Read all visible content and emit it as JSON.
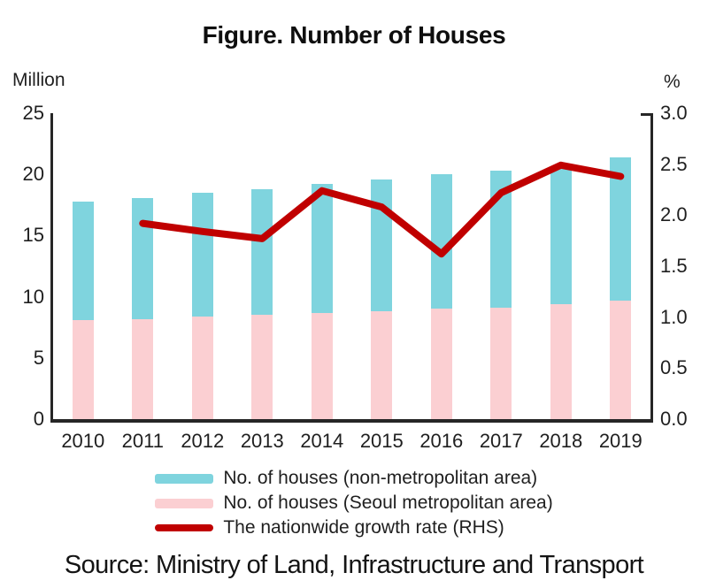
{
  "title": "Figure. Number of Houses",
  "source": "Source: Ministry of Land, Infrastructure and Transport",
  "left_axis": {
    "unit": "Million",
    "tick_labels": [
      "25",
      "20",
      "15",
      "10",
      "5",
      "0"
    ],
    "min": 0,
    "max": 25
  },
  "right_axis": {
    "unit": "%",
    "tick_labels": [
      "3.0",
      "2.5",
      "2.0",
      "1.5",
      "1.0",
      "0.5",
      "0.0"
    ],
    "min": 0,
    "max": 3
  },
  "colors": {
    "non_metro_bar": "#7FD4DE",
    "seoul_bar": "#FBCFD2",
    "growth_line": "#C00000",
    "axis": "#262626",
    "text": "#1F1F1F"
  },
  "chart_data": {
    "type": "bar",
    "subtype": "stacked-bars-with-line-dual-axis",
    "title": "Figure. Number of Houses",
    "categories": [
      2010,
      2011,
      2012,
      2013,
      2014,
      2015,
      2016,
      2017,
      2018,
      2019
    ],
    "series": [
      {
        "name": "No. of houses (non-metropolitan area)",
        "type": "bar",
        "stack_position": "top",
        "axis": "left",
        "color": "#7FD4DE",
        "values": [
          9.7,
          9.9,
          10.1,
          10.3,
          10.5,
          10.8,
          11.0,
          11.2,
          11.2,
          11.7
        ]
      },
      {
        "name": "No. of houses (Seoul metropolitan area)",
        "type": "bar",
        "stack_position": "bottom",
        "axis": "left",
        "color": "#FBCFD2",
        "values": [
          8.1,
          8.2,
          8.4,
          8.5,
          8.7,
          8.8,
          9.0,
          9.1,
          9.4,
          9.7
        ]
      },
      {
        "name": "The nationwide growth rate (RHS)",
        "type": "line",
        "axis": "right",
        "color": "#C00000",
        "values": [
          null,
          1.92,
          1.84,
          1.77,
          2.24,
          2.08,
          1.62,
          2.22,
          2.49,
          2.38
        ]
      }
    ],
    "stacked_totals": [
      17.8,
      18.1,
      18.5,
      18.8,
      19.2,
      19.6,
      20.0,
      20.3,
      20.6,
      21.4
    ],
    "ylabel_left": "Million",
    "ylabel_right": "%",
    "ylim_left": [
      0,
      25
    ],
    "ylim_right": [
      0,
      3
    ],
    "grid": false,
    "legend_position": "bottom"
  }
}
